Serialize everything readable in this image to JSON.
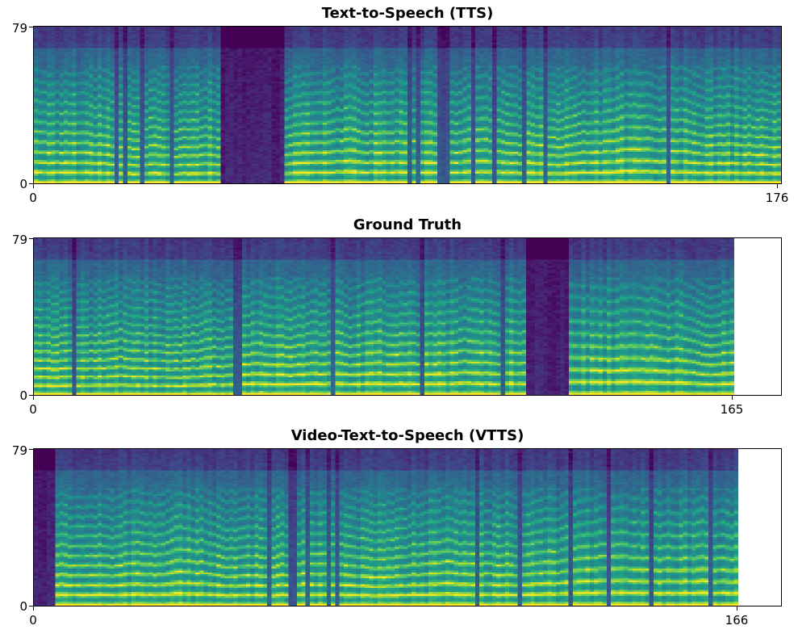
{
  "chart_data": [
    {
      "type": "heatmap",
      "title": "Text-to-Speech (TTS)",
      "xlabel": "",
      "ylabel": "",
      "colormap": "viridis",
      "x_frames": 176,
      "y_bins": 80,
      "xlim": [
        0,
        176
      ],
      "ylim": [
        0,
        79
      ],
      "x_ticks": [
        "0",
        "176"
      ],
      "y_ticks": [
        "0",
        "79"
      ],
      "silent_segments_frac": [
        [
          0.245,
          0.335
        ],
        [
          0.995,
          1.0
        ]
      ],
      "grid": false
    },
    {
      "type": "heatmap",
      "title": "Ground Truth",
      "xlabel": "",
      "ylabel": "",
      "colormap": "viridis",
      "x_frames": 165,
      "y_bins": 80,
      "xlim": [
        0,
        176
      ],
      "ylim": [
        0,
        79
      ],
      "x_ticks": [
        "0",
        "165"
      ],
      "y_ticks": [
        "0",
        "79"
      ],
      "silent_segments_frac": [
        [
          0.7,
          0.76
        ]
      ],
      "grid": false
    },
    {
      "type": "heatmap",
      "title": "Video-Text-to-Speech (VTTS)",
      "xlabel": "",
      "ylabel": "",
      "colormap": "viridis",
      "x_frames": 166,
      "y_bins": 80,
      "xlim": [
        0,
        176
      ],
      "ylim": [
        0,
        79
      ],
      "x_ticks": [
        "0",
        "166"
      ],
      "y_ticks": [
        "0",
        "79"
      ],
      "silent_segments_frac": [
        [
          0.0,
          0.03
        ]
      ],
      "grid": false
    }
  ]
}
